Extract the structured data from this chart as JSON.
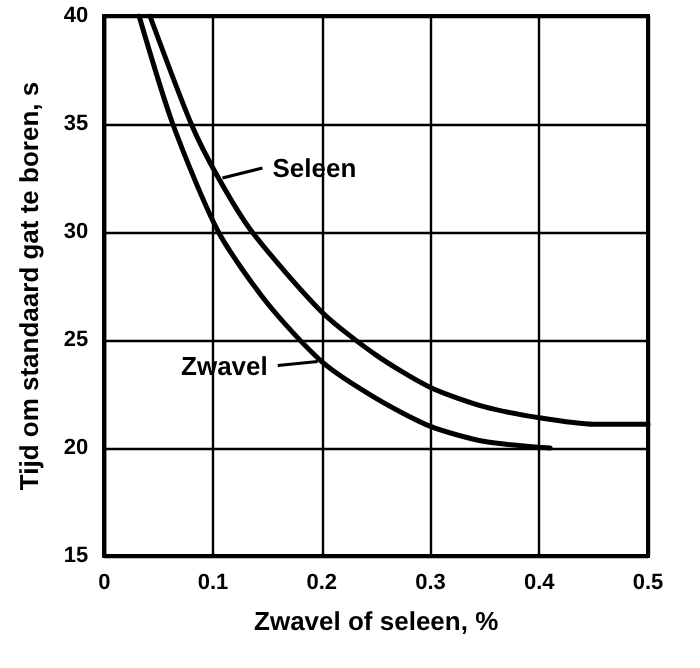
{
  "chart_data": {
    "type": "line",
    "xlabel": "Zwavel of seleen, %",
    "ylabel": "Tijd om standaard gat te boren, s",
    "series": [
      {
        "name": "Zwavel",
        "color": "#000000",
        "x": [
          0.032,
          0.063,
          0.105,
          0.15,
          0.2,
          0.25,
          0.3,
          0.35,
          0.41
        ],
        "values": [
          40,
          35,
          30,
          26.7,
          24,
          22.3,
          21,
          20.3,
          20
        ]
      },
      {
        "name": "Seleen",
        "color": "#000000",
        "x": [
          0.042,
          0.08,
          0.105,
          0.136,
          0.2,
          0.25,
          0.3,
          0.35,
          0.4,
          0.45,
          0.5
        ],
        "values": [
          40,
          35,
          32.5,
          30,
          26.3,
          24.3,
          22.8,
          21.9,
          21.4,
          21.1,
          21.1
        ]
      }
    ],
    "xlim": [
      0,
      0.5
    ],
    "xticks": [
      0,
      0.1,
      0.2,
      0.3,
      0.4,
      0.5
    ],
    "ylim": [
      15,
      40
    ],
    "yticks": [
      15,
      20,
      25,
      30,
      35,
      40
    ],
    "grid": true,
    "marker": "none",
    "line_style": "solid"
  }
}
